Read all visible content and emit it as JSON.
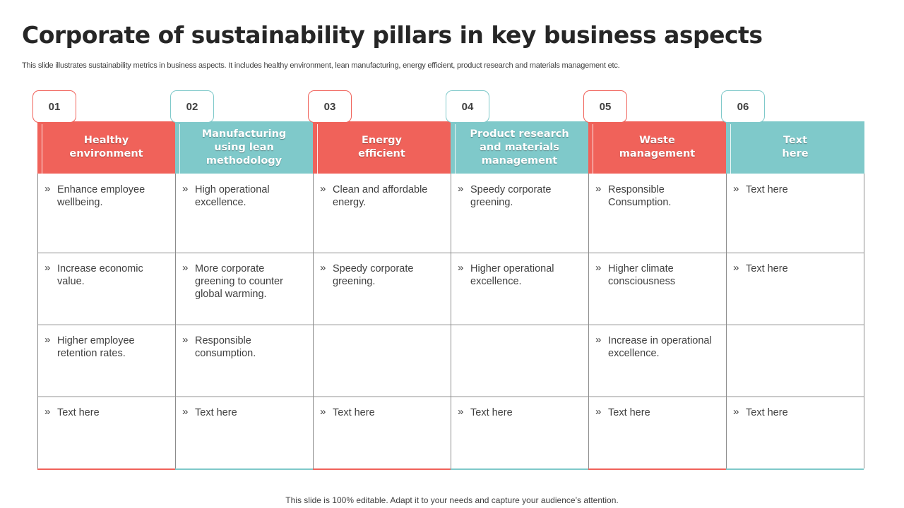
{
  "slide": {
    "title": "Corporate of sustainability pillars in key business aspects",
    "subtitle": "This slide illustrates sustainability metrics in business aspects. It includes healthy environment, lean manufacturing, energy efficient, product research and materials  management etc.",
    "footer": "This slide is 100% editable. Adapt it to your needs and capture your audience’s attention."
  },
  "colors": {
    "coral": "#f0625a",
    "teal": "#7fc9ca"
  },
  "pillars": [
    {
      "number": "01",
      "title": "Healthy\nenvironment",
      "color": "#f0625a",
      "cells": [
        "Enhance employee wellbeing.",
        "Increase economic value.",
        "Higher employee retention rates.",
        "Text here"
      ]
    },
    {
      "number": "02",
      "title": "Manufacturing\nusing lean\nmethodology",
      "color": "#7fc9ca",
      "cells": [
        "High operational excellence.",
        "More corporate greening to counter global warming.",
        "Responsible consumption.",
        "Text here"
      ]
    },
    {
      "number": "03",
      "title": "Energy\nefficient",
      "color": "#f0625a",
      "cells": [
        "Clean and affordable energy.",
        "Speedy corporate greening.",
        "",
        "Text here"
      ]
    },
    {
      "number": "04",
      "title": "Product research\nand materials\nmanagement",
      "color": "#7fc9ca",
      "cells": [
        "Speedy corporate greening.",
        "Higher operational excellence.",
        "",
        "Text here"
      ]
    },
    {
      "number": "05",
      "title": "Waste\nmanagement",
      "color": "#f0625a",
      "cells": [
        "Responsible Consumption.",
        "Higher climate consciousness",
        "Increase in operational excellence.",
        "Text here"
      ]
    },
    {
      "number": "06",
      "title": "Text\nhere",
      "color": "#7fc9ca",
      "cells": [
        "Text here",
        "Text here",
        "",
        "Text here"
      ]
    }
  ]
}
